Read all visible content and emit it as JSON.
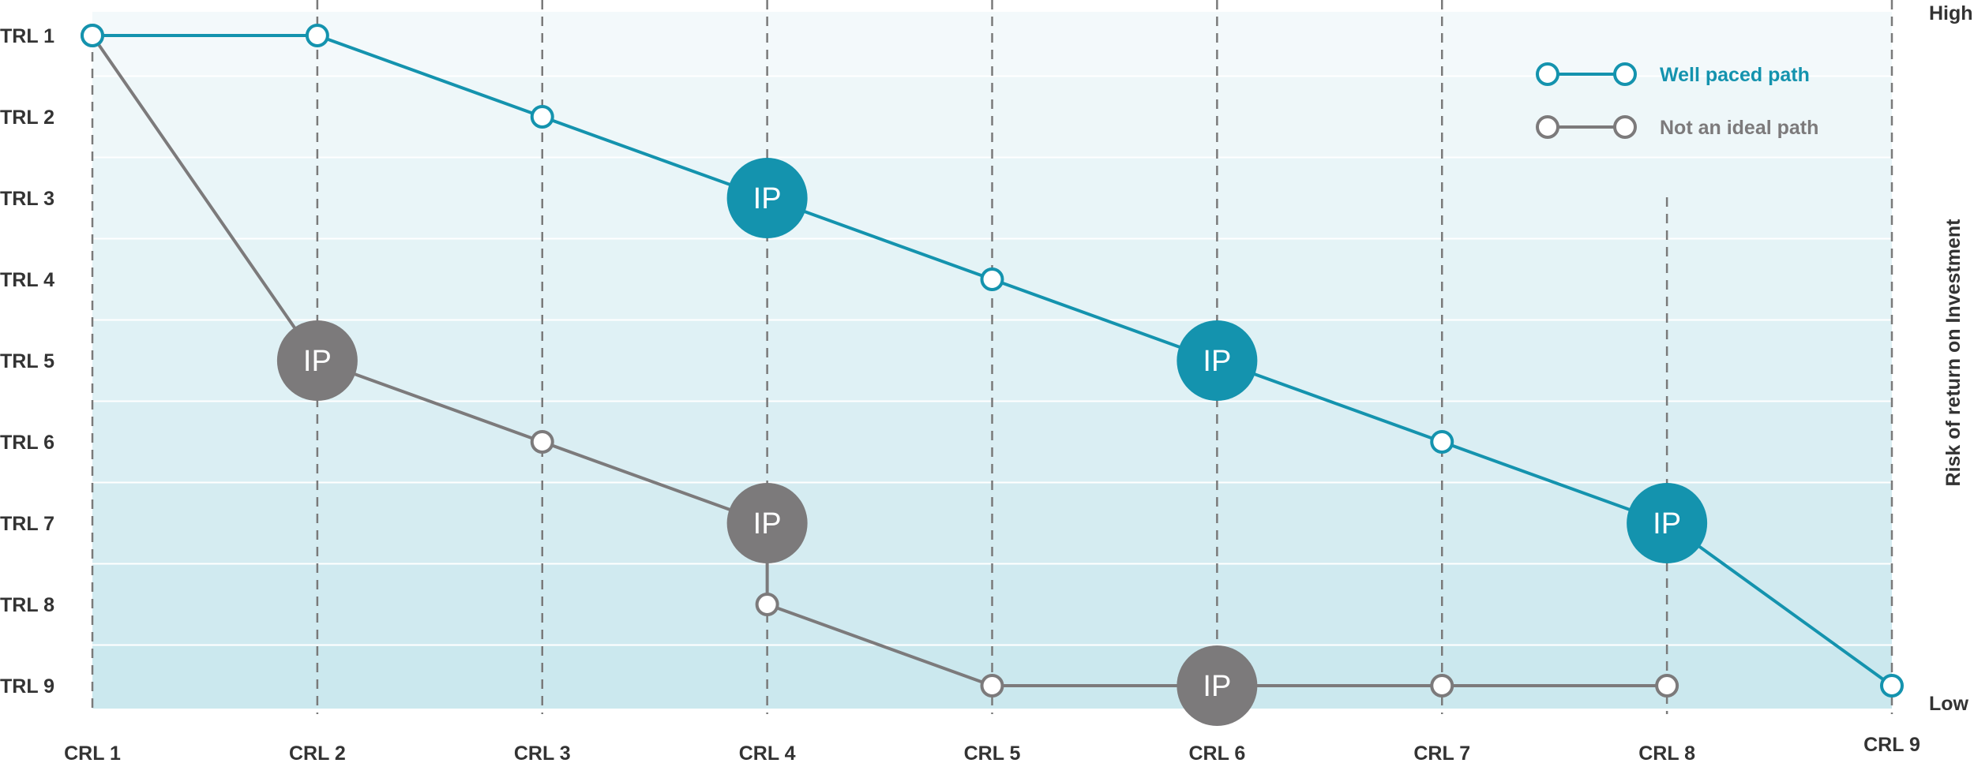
{
  "chart_data": {
    "type": "line",
    "x_categories": [
      "CRL 1",
      "CRL 2",
      "CRL 3",
      "CRL 4",
      "CRL 5",
      "CRL 6",
      "CRL 7",
      "CRL 8",
      "CRL 9"
    ],
    "y_categories": [
      "TRL 1",
      "TRL 2",
      "TRL 3",
      "TRL 4",
      "TRL 5",
      "TRL 6",
      "TRL 7",
      "TRL 8",
      "TRL 9"
    ],
    "right_axis": {
      "label": "Risk of return on Investment",
      "top": "High",
      "bottom": "Low"
    },
    "marker_label": "IP",
    "series": [
      {
        "name": "Well paced path",
        "color": "#1493ae",
        "points": [
          {
            "x": "CRL 1",
            "y": "TRL 1",
            "ip": false
          },
          {
            "x": "CRL 2",
            "y": "TRL 1",
            "ip": false
          },
          {
            "x": "CRL 3",
            "y": "TRL 2",
            "ip": false
          },
          {
            "x": "CRL 4",
            "y": "TRL 3",
            "ip": true
          },
          {
            "x": "CRL 5",
            "y": "TRL 4",
            "ip": false
          },
          {
            "x": "CRL 6",
            "y": "TRL 5",
            "ip": true
          },
          {
            "x": "CRL 7",
            "y": "TRL 6",
            "ip": false
          },
          {
            "x": "CRL 8",
            "y": "TRL 7",
            "ip": true
          },
          {
            "x": "CRL 9",
            "y": "TRL 9",
            "ip": false
          }
        ]
      },
      {
        "name": "Not an ideal path",
        "color": "#7c7a7b",
        "points": [
          {
            "x": "CRL 1",
            "y": "TRL 1",
            "ip": false
          },
          {
            "x": "CRL 2",
            "y": "TRL 5",
            "ip": true
          },
          {
            "x": "CRL 3",
            "y": "TRL 6",
            "ip": false
          },
          {
            "x": "CRL 4",
            "y": "TRL 7",
            "ip": true
          },
          {
            "x": "CRL 4",
            "y": "TRL 8",
            "ip": false
          },
          {
            "x": "CRL 5",
            "y": "TRL 9",
            "ip": false
          },
          {
            "x": "CRL 6",
            "y": "TRL 9",
            "ip": true
          },
          {
            "x": "CRL 7",
            "y": "TRL 9",
            "ip": false
          },
          {
            "x": "CRL 8",
            "y": "TRL 9",
            "ip": false
          }
        ]
      }
    ],
    "legend_position": "top-right",
    "grid": "vertical dashed",
    "colors": {
      "band_top": "#f3f9fb",
      "band_bottom": "#cbe8ee",
      "grid": "#7a7a7a"
    }
  }
}
